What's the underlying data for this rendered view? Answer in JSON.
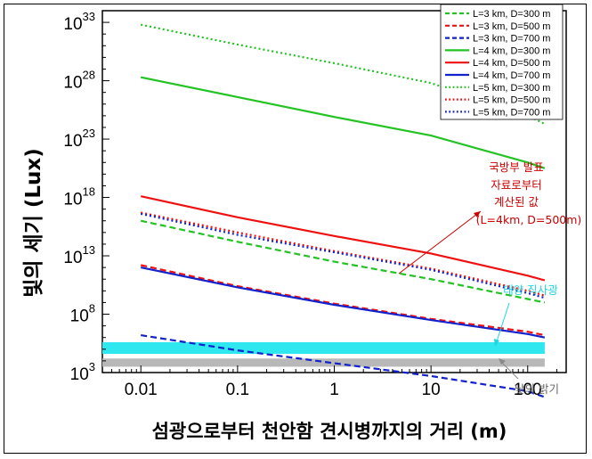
{
  "chart_data": {
    "type": "line",
    "xlabel": "섬광으로부터 천안함 견시병까지의 거리 (m)",
    "ylabel": "빛의 세기 (Lux)",
    "x_scale": "log",
    "y_scale": "log",
    "xlim": [
      0.004,
      250
    ],
    "ylim": [
      1000.0,
      1e+34
    ],
    "x_ticks": [
      {
        "value": 0.01,
        "label": "0.01"
      },
      {
        "value": 0.1,
        "label": "0.1"
      },
      {
        "value": 1,
        "label": "1"
      },
      {
        "value": 10,
        "label": "10"
      },
      {
        "value": 100,
        "label": "100"
      }
    ],
    "y_ticks": [
      {
        "value": 1000.0,
        "base": "10",
        "exp": "3"
      },
      {
        "value": 100000000.0,
        "base": "10",
        "exp": "8"
      },
      {
        "value": 10000000000000.0,
        "base": "10",
        "exp": "13"
      },
      {
        "value": 1e+18,
        "base": "10",
        "exp": "18"
      },
      {
        "value": 1e+23,
        "base": "10",
        "exp": "23"
      },
      {
        "value": 1e+28,
        "base": "10",
        "exp": "28"
      },
      {
        "value": 1e+33,
        "base": "10",
        "exp": "33"
      }
    ],
    "x": [
      0.01,
      0.1,
      1,
      10,
      100,
      150
    ],
    "series": [
      {
        "name": "L=3 km, D=300 m",
        "color": "#22c322",
        "dash": "dash",
        "log10_y": [
          16.0,
          14.2,
          12.5,
          11.0,
          9.3,
          9.0
        ]
      },
      {
        "name": "L=3 km, D=500 m",
        "color": "#ee1111",
        "dash": "dash",
        "log10_y": [
          12.2,
          10.4,
          8.9,
          7.6,
          6.5,
          6.2
        ]
      },
      {
        "name": "L=3 km, D=700 m",
        "color": "#1122cc",
        "dash": "dash",
        "log10_y": [
          6.2,
          4.9,
          3.8,
          2.7,
          1.4,
          0.9
        ]
      },
      {
        "name": "L=4 km, D=300 m",
        "color": "#22c322",
        "dash": "solid",
        "log10_y": [
          28.3,
          26.6,
          24.9,
          23.3,
          21.0,
          20.5
        ]
      },
      {
        "name": "L=4 km, D=500 m",
        "color": "#ee1111",
        "dash": "solid",
        "log10_y": [
          18.1,
          16.3,
          14.7,
          13.2,
          11.3,
          10.9
        ]
      },
      {
        "name": "L=4 km, D=700 m",
        "color": "#1122cc",
        "dash": "solid",
        "log10_y": [
          12.0,
          10.3,
          8.8,
          7.5,
          6.3,
          6.0
        ]
      },
      {
        "name": "L=5 km, D=300 m",
        "color": "#22c322",
        "dash": "dot",
        "log10_y": [
          32.8,
          31.1,
          29.5,
          27.8,
          25.0,
          24.3
        ]
      },
      {
        "name": "L=5 km, D=500 m",
        "color": "#ee1111",
        "dash": "dot",
        "log10_y": [
          16.7,
          15.0,
          13.4,
          11.9,
          10.0,
          9.6
        ]
      },
      {
        "name": "L=5 km, D=700 m",
        "color": "#1122cc",
        "dash": "dot",
        "log10_y": [
          16.6,
          14.8,
          13.3,
          11.8,
          9.8,
          9.4
        ]
      }
    ],
    "bands": [
      {
        "name": "태양 직사광",
        "color": "#2fe7ee",
        "log10_y_range": [
          4.6,
          5.6
        ]
      },
      {
        "name": "낮의 밝기",
        "color": "#b8b8b8",
        "log10_y_range": [
          3.5,
          4.2
        ]
      }
    ],
    "annotations": {
      "defense_calc": [
        "국방부 발표",
        "자료로부터",
        "계산된 값",
        "(L=4km, D=500m)"
      ],
      "defense_calc_color": "#cc0000",
      "sunlight": "태양 직사광",
      "sunlight_color": "#1fd6e0",
      "daylight": "낮의 밝기",
      "daylight_color": "#666666"
    },
    "legend_position": "top-right"
  }
}
